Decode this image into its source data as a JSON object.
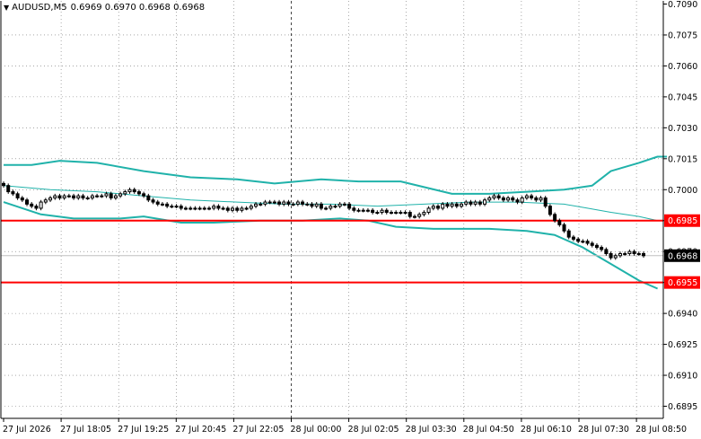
{
  "header": {
    "symbol": "AUDUSD,M5",
    "quote": "0.6969 0.6970 0.6968 0.6968"
  },
  "colors": {
    "background": "#ffffff",
    "axis": "#000000",
    "grid": "#000000",
    "bands": "#20b2aa",
    "level_line": "#ff0000",
    "candle": "#000000",
    "current_price_tag": "#000000"
  },
  "chart_data": {
    "type": "candlestick",
    "symbol": "AUDUSD",
    "timeframe": "M5",
    "y_range": [
      0.6886,
      0.709
    ],
    "y_ticks": [
      "0.7090",
      "0.7075",
      "0.7060",
      "0.7045",
      "0.7030",
      "0.7015",
      "0.7000",
      "0.6985",
      "0.6970",
      "0.6955",
      "0.6940",
      "0.6925",
      "0.6910",
      "0.6895"
    ],
    "x_ticks": [
      "27 Jul 2026",
      "27 Jul 18:05",
      "27 Jul 19:25",
      "27 Jul 20:45",
      "27 Jul 22:05",
      "28 Jul 00:00",
      "28 Jul 02:05",
      "28 Jul 03:30",
      "28 Jul 04:50",
      "28 Jul 06:10",
      "28 Jul 07:30",
      "28 Jul 08:50"
    ],
    "grid": true,
    "grid_style": "dotted",
    "period_separator": "28 Jul 00:00",
    "horizontal_levels": [
      {
        "price": 0.6985,
        "label": "0.6985",
        "color": "#ff0000"
      },
      {
        "price": 0.6955,
        "label": "0.6955",
        "color": "#ff0000"
      }
    ],
    "current_price": {
      "price": 0.6968,
      "label": "0.6968"
    },
    "candles_close": [
      0.7002,
      0.6999,
      0.6998,
      0.6996,
      0.6995,
      0.6993,
      0.6992,
      0.6991,
      0.6994,
      0.6995,
      0.6996,
      0.6997,
      0.6996,
      0.6997,
      0.6997,
      0.6996,
      0.6997,
      0.6996,
      0.6996,
      0.6997,
      0.6997,
      0.6997,
      0.6998,
      0.6996,
      0.6997,
      0.6998,
      0.6999,
      0.7,
      0.6999,
      0.6998,
      0.6997,
      0.6995,
      0.6994,
      0.6993,
      0.6993,
      0.6992,
      0.6992,
      0.6992,
      0.6991,
      0.6991,
      0.6991,
      0.6991,
      0.6991,
      0.6991,
      0.6991,
      0.6992,
      0.6991,
      0.6991,
      0.699,
      0.6991,
      0.699,
      0.6991,
      0.6991,
      0.6992,
      0.6993,
      0.6993,
      0.6994,
      0.6994,
      0.6994,
      0.6993,
      0.6994,
      0.6993,
      0.6993,
      0.6994,
      0.6993,
      0.6993,
      0.6992,
      0.6993,
      0.6991,
      0.6991,
      0.6992,
      0.6992,
      0.6993,
      0.6993,
      0.6991,
      0.699,
      0.699,
      0.699,
      0.699,
      0.6989,
      0.6989,
      0.699,
      0.6989,
      0.6989,
      0.6989,
      0.6989,
      0.6989,
      0.6987,
      0.6987,
      0.6988,
      0.6989,
      0.6991,
      0.6992,
      0.6991,
      0.6993,
      0.6992,
      0.6993,
      0.6992,
      0.6993,
      0.6994,
      0.6993,
      0.6994,
      0.6993,
      0.6995,
      0.6996,
      0.6997,
      0.6996,
      0.6995,
      0.6996,
      0.6995,
      0.6994,
      0.6996,
      0.6997,
      0.6996,
      0.6995,
      0.6996,
      0.6992,
      0.6988,
      0.6985,
      0.6983,
      0.698,
      0.6977,
      0.6976,
      0.6975,
      0.6975,
      0.6974,
      0.6973,
      0.6972,
      0.6971,
      0.6969,
      0.6967,
      0.6968,
      0.6969,
      0.6969,
      0.697,
      0.6969,
      0.6969,
      0.6968
    ],
    "bands": [
      {
        "name": "upper",
        "points": [
          [
            0,
            0.7012
          ],
          [
            6,
            0.7012
          ],
          [
            12,
            0.7014
          ],
          [
            20,
            0.7013
          ],
          [
            30,
            0.7009
          ],
          [
            40,
            0.7006
          ],
          [
            50,
            0.7005
          ],
          [
            58,
            0.7003
          ],
          [
            68,
            0.7005
          ],
          [
            76,
            0.7004
          ],
          [
            85,
            0.7004
          ],
          [
            96,
            0.6998
          ],
          [
            104,
            0.6998
          ],
          [
            112,
            0.6999
          ],
          [
            120,
            0.7
          ],
          [
            126,
            0.7002
          ],
          [
            130,
            0.7009
          ],
          [
            136,
            0.7013
          ],
          [
            140,
            0.7016
          ],
          [
            142,
            0.7016
          ]
        ]
      },
      {
        "name": "middle",
        "points": [
          [
            0,
            0.7002
          ],
          [
            10,
            0.7
          ],
          [
            20,
            0.6999
          ],
          [
            30,
            0.6997
          ],
          [
            40,
            0.6995
          ],
          [
            50,
            0.6994
          ],
          [
            60,
            0.6993
          ],
          [
            70,
            0.6993
          ],
          [
            80,
            0.6992
          ],
          [
            90,
            0.6993
          ],
          [
            100,
            0.6994
          ],
          [
            110,
            0.6994
          ],
          [
            120,
            0.6993
          ],
          [
            125,
            0.6991
          ],
          [
            130,
            0.6989
          ],
          [
            136,
            0.6987
          ],
          [
            140,
            0.6985
          ]
        ]
      },
      {
        "name": "lower",
        "points": [
          [
            0,
            0.6994
          ],
          [
            8,
            0.6988
          ],
          [
            15,
            0.6986
          ],
          [
            25,
            0.6986
          ],
          [
            30,
            0.6987
          ],
          [
            38,
            0.6984
          ],
          [
            45,
            0.6984
          ],
          [
            55,
            0.6985
          ],
          [
            64,
            0.6985
          ],
          [
            72,
            0.6986
          ],
          [
            78,
            0.6985
          ],
          [
            84,
            0.6982
          ],
          [
            92,
            0.6981
          ],
          [
            104,
            0.6981
          ],
          [
            112,
            0.698
          ],
          [
            118,
            0.6978
          ],
          [
            124,
            0.6972
          ],
          [
            130,
            0.6964
          ],
          [
            136,
            0.6956
          ],
          [
            140,
            0.6952
          ]
        ]
      }
    ]
  }
}
